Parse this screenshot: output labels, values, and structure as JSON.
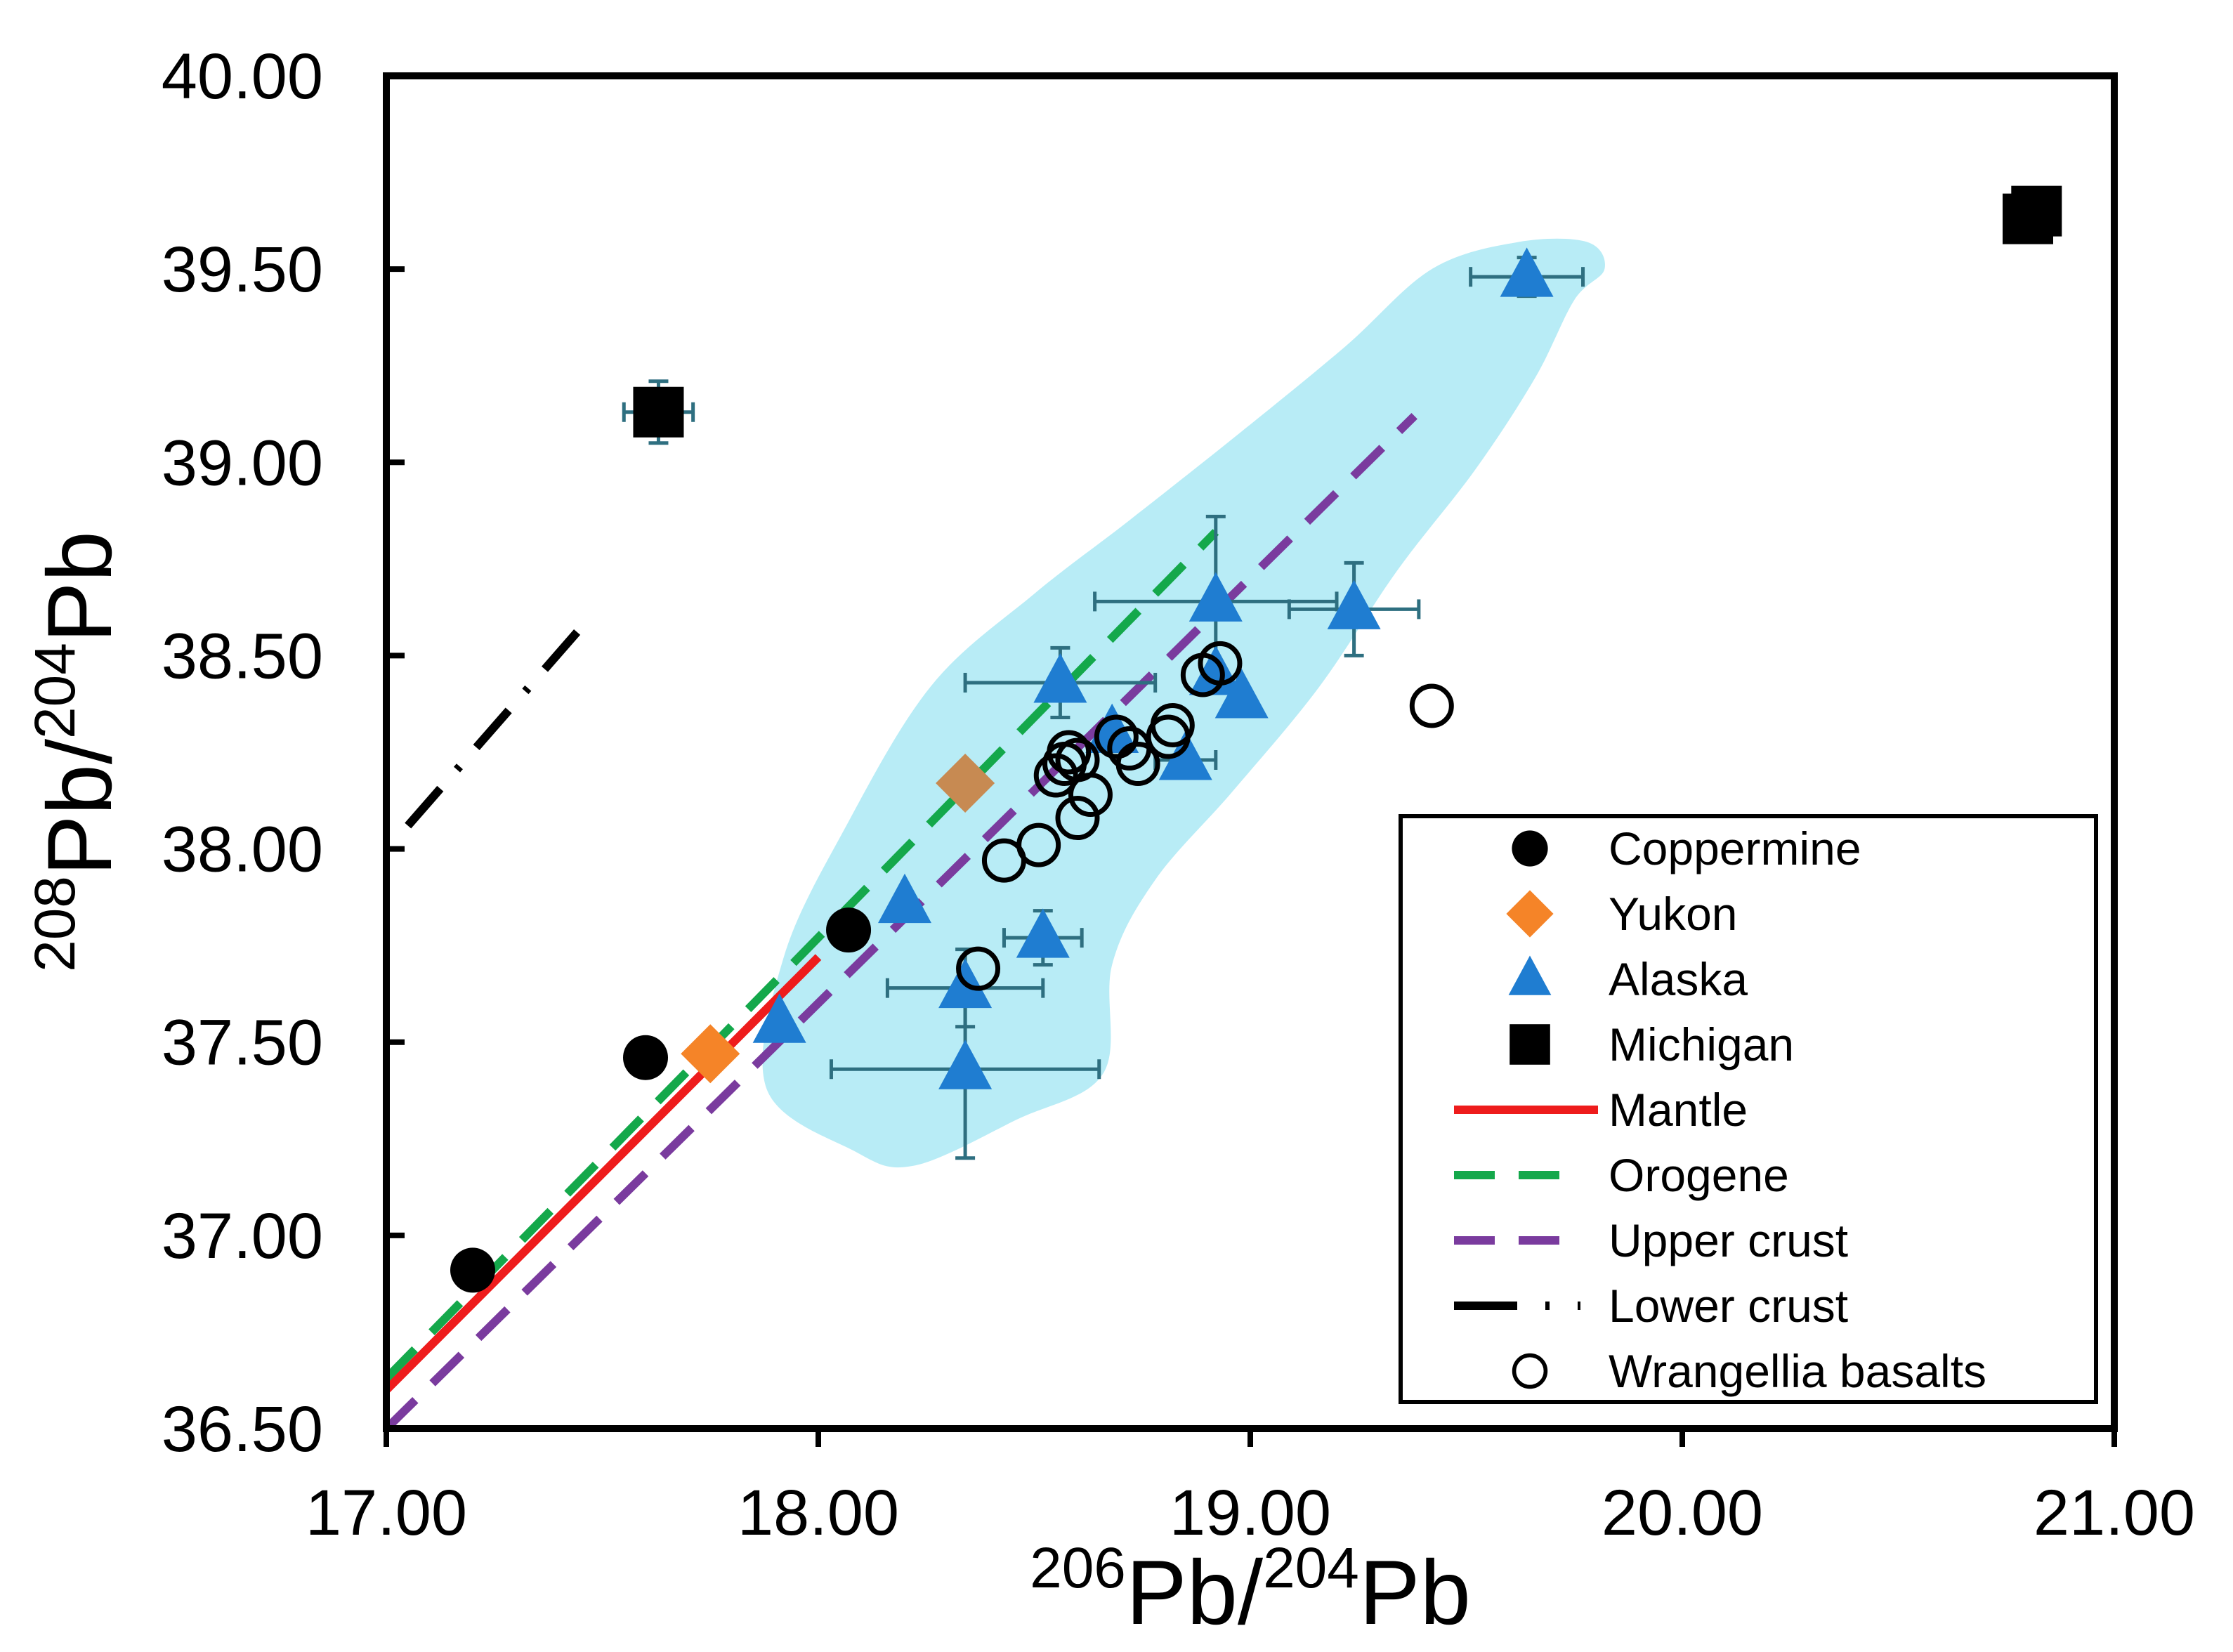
{
  "chart_data": {
    "type": "scatter",
    "xlabel": {
      "sup1": "206",
      "base1": "Pb/",
      "sup2": "204",
      "base2": "Pb"
    },
    "ylabel": {
      "sup1": "208",
      "base1": "Pb/",
      "sup2": "204",
      "base2": "Pb"
    },
    "xlim": [
      17.0,
      21.0
    ],
    "ylim": [
      36.5,
      40.0
    ],
    "x_ticks": [
      {
        "value": 17.0,
        "label": "17.00"
      },
      {
        "value": 18.0,
        "label": "18.00"
      },
      {
        "value": 19.0,
        "label": "19.00"
      },
      {
        "value": 20.0,
        "label": "20.00"
      },
      {
        "value": 21.0,
        "label": "21.00"
      }
    ],
    "y_ticks": [
      {
        "value": 36.5,
        "label": "36.50"
      },
      {
        "value": 37.0,
        "label": "37.00"
      },
      {
        "value": 37.5,
        "label": "37.50"
      },
      {
        "value": 38.0,
        "label": "38.00"
      },
      {
        "value": 38.5,
        "label": "38.50"
      },
      {
        "value": 39.0,
        "label": "39.00"
      },
      {
        "value": 39.5,
        "label": "39.50"
      },
      {
        "value": 40.0,
        "label": "40.00"
      }
    ],
    "region": {
      "name": "Wrangellia field",
      "color": "#b8ecf6",
      "outline": [
        [
          17.88,
          37.38
        ],
        [
          17.92,
          37.72
        ],
        [
          18.06,
          38.05
        ],
        [
          18.26,
          38.42
        ],
        [
          18.5,
          38.66
        ],
        [
          18.72,
          38.85
        ],
        [
          18.98,
          39.08
        ],
        [
          19.22,
          39.3
        ],
        [
          19.42,
          39.5
        ],
        [
          19.62,
          39.57
        ],
        [
          19.78,
          39.57
        ],
        [
          19.82,
          39.5
        ],
        [
          19.75,
          39.42
        ],
        [
          19.66,
          39.22
        ],
        [
          19.52,
          38.98
        ],
        [
          19.34,
          38.72
        ],
        [
          19.16,
          38.42
        ],
        [
          18.96,
          38.15
        ],
        [
          18.78,
          37.92
        ],
        [
          18.68,
          37.7
        ],
        [
          18.66,
          37.42
        ],
        [
          18.46,
          37.3
        ],
        [
          18.22,
          37.18
        ],
        [
          18.08,
          37.22
        ],
        [
          17.88,
          37.38
        ]
      ]
    },
    "series": [
      {
        "name": "Coppermine",
        "marker": "circle",
        "color": "#000000",
        "points": [
          {
            "x": 17.2,
            "y": 36.91
          },
          {
            "x": 17.6,
            "y": 37.46
          },
          {
            "x": 18.07,
            "y": 37.79
          }
        ]
      },
      {
        "name": "Yukon",
        "marker": "diamond",
        "color": "#f58428",
        "points": [
          {
            "x": 17.75,
            "y": 37.47,
            "color": "#f58428"
          },
          {
            "x": 18.34,
            "y": 38.17,
            "color": "#c78a52"
          }
        ]
      },
      {
        "name": "Alaska",
        "marker": "triangle",
        "color": "#1f7dd1",
        "points": [
          {
            "x": 17.91,
            "y": 37.55
          },
          {
            "x": 18.2,
            "y": 37.86
          },
          {
            "x": 18.34,
            "y": 37.64,
            "ex": 0.18,
            "ey": 0.1
          },
          {
            "x": 18.34,
            "y": 37.43,
            "ex": 0.31,
            "ey": 0.23
          },
          {
            "x": 18.52,
            "y": 37.77,
            "ex": 0.09,
            "ey": 0.07
          },
          {
            "x": 18.56,
            "y": 38.43,
            "ex": 0.22,
            "ey": 0.09
          },
          {
            "x": 18.85,
            "y": 38.23,
            "ex": 0.07
          },
          {
            "x": 18.92,
            "y": 38.64,
            "ex": 0.28,
            "ey": 0.22
          },
          {
            "x": 18.92,
            "y": 38.45
          },
          {
            "x": 18.98,
            "y": 38.39
          },
          {
            "x": 19.24,
            "y": 38.62,
            "ex": 0.15,
            "ey": 0.12
          },
          {
            "x": 19.64,
            "y": 39.48,
            "ex": 0.13,
            "ey": 0.05
          },
          {
            "x": 18.68,
            "y": 38.3
          }
        ]
      },
      {
        "name": "Michigan",
        "marker": "square",
        "color": "#000000",
        "points": [
          {
            "x": 17.63,
            "y": 39.13,
            "ex": 0.08,
            "ey": 0.08
          },
          {
            "x": 20.8,
            "y": 39.63
          },
          {
            "x": 20.82,
            "y": 39.65
          }
        ]
      },
      {
        "name": "Wrangellia basalts",
        "marker": "open-circle",
        "color": "#000000",
        "points": [
          {
            "x": 18.37,
            "y": 37.69
          },
          {
            "x": 18.43,
            "y": 37.97
          },
          {
            "x": 18.51,
            "y": 38.01
          },
          {
            "x": 18.55,
            "y": 38.19
          },
          {
            "x": 18.57,
            "y": 38.22
          },
          {
            "x": 18.58,
            "y": 38.25
          },
          {
            "x": 18.6,
            "y": 38.23
          },
          {
            "x": 18.6,
            "y": 38.08
          },
          {
            "x": 18.63,
            "y": 38.14
          },
          {
            "x": 18.69,
            "y": 38.29
          },
          {
            "x": 18.72,
            "y": 38.26
          },
          {
            "x": 18.74,
            "y": 38.22
          },
          {
            "x": 18.81,
            "y": 38.29
          },
          {
            "x": 18.82,
            "y": 38.32
          },
          {
            "x": 18.89,
            "y": 38.45
          },
          {
            "x": 18.93,
            "y": 38.48
          },
          {
            "x": 19.42,
            "y": 38.37
          }
        ]
      }
    ],
    "lines": [
      {
        "name": "Mantle",
        "style": "solid",
        "color": "#ee1c1c",
        "points": [
          [
            17.0,
            36.6
          ],
          [
            18.0,
            37.72
          ]
        ]
      },
      {
        "name": "Orogene",
        "style": "dashed",
        "color": "#14a84b",
        "points": [
          [
            17.0,
            36.63
          ],
          [
            18.92,
            38.82
          ]
        ]
      },
      {
        "name": "Upper crust",
        "style": "dashed",
        "color": "#7a3b9e",
        "points": [
          [
            17.0,
            36.5
          ],
          [
            19.38,
            39.12
          ]
        ]
      },
      {
        "name": "Lower crust",
        "style": "dashdot",
        "color": "#000000",
        "points": [
          [
            17.05,
            38.06
          ],
          [
            17.48,
            38.61
          ]
        ]
      }
    ],
    "legend": {
      "position": "bottom-right",
      "entries": [
        {
          "label": "Coppermine",
          "symbol": "circle",
          "color": "#000000"
        },
        {
          "label": "Yukon",
          "symbol": "diamond",
          "color": "#f58428"
        },
        {
          "label": "Alaska",
          "symbol": "triangle",
          "color": "#1f7dd1"
        },
        {
          "label": "Michigan",
          "symbol": "square",
          "color": "#000000"
        },
        {
          "label": "Mantle",
          "symbol": "solid-line",
          "color": "#ee1c1c"
        },
        {
          "label": "Orogene",
          "symbol": "dashed-line",
          "color": "#14a84b"
        },
        {
          "label": "Upper crust",
          "symbol": "dashed-line",
          "color": "#7a3b9e"
        },
        {
          "label": "Lower crust",
          "symbol": "dashdot-line",
          "color": "#000000"
        },
        {
          "label": "Wrangellia basalts",
          "symbol": "open-circle",
          "color": "#000000"
        }
      ]
    },
    "errorbar_color": "#2e6f80"
  }
}
